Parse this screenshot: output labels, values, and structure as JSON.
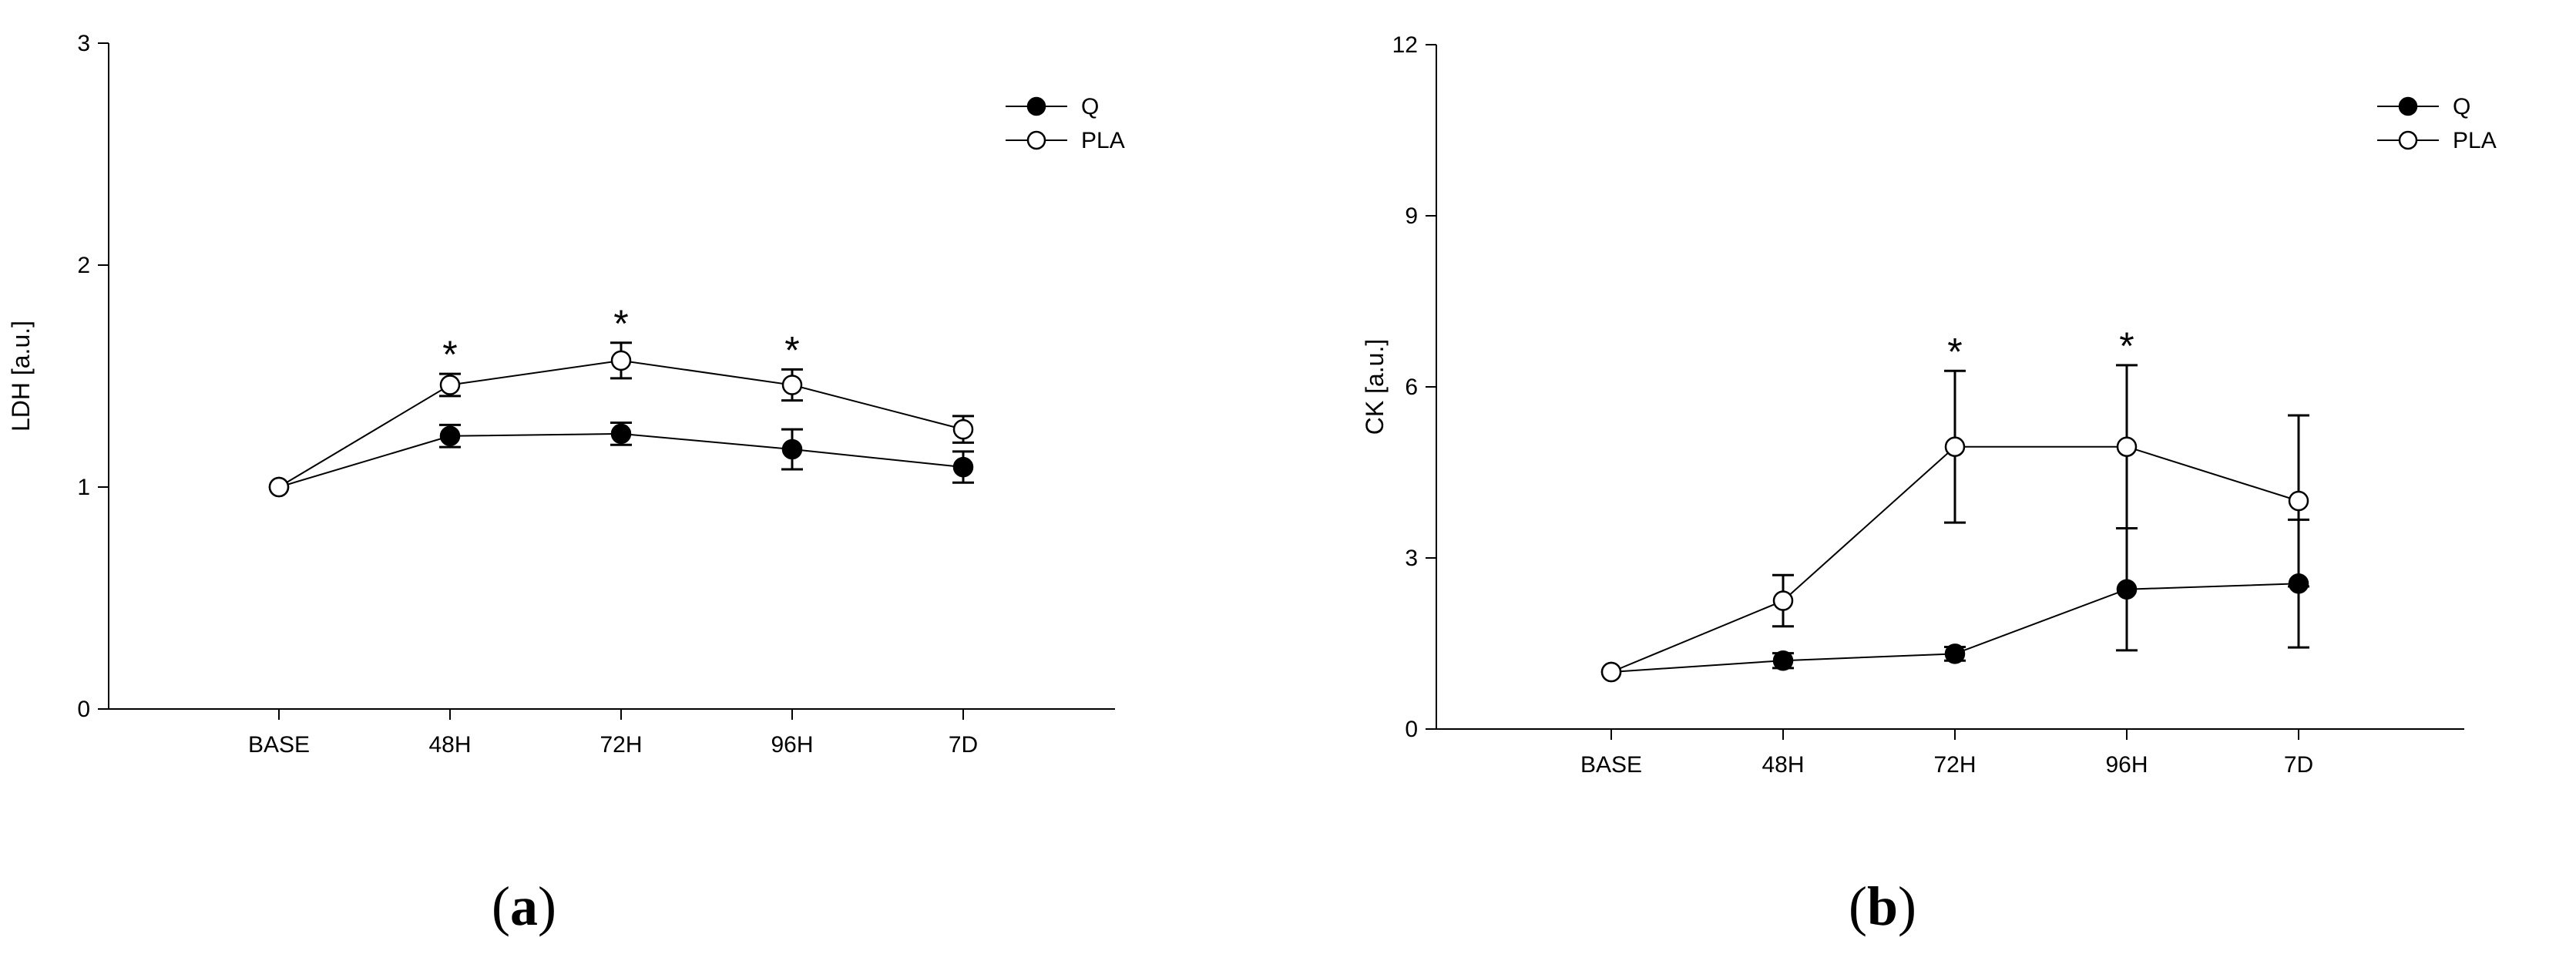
{
  "chart_data": [
    {
      "type": "line",
      "panel_label_open": "(",
      "panel_label_letter": "a",
      "panel_label_close": ")",
      "ylabel": "LDH [a.u.]",
      "ylim": [
        0,
        3
      ],
      "yticks": [
        "0",
        "1",
        "2",
        "3"
      ],
      "categories": [
        "BASE",
        "48H",
        "72H",
        "96H",
        "7D"
      ],
      "legend_position": "top-right",
      "series": [
        {
          "name": "Q",
          "marker": "filled",
          "values": [
            1.0,
            1.23,
            1.24,
            1.17,
            1.09
          ],
          "errors": [
            0,
            0.05,
            0.05,
            0.09,
            0.07
          ]
        },
        {
          "name": "PLA",
          "marker": "open",
          "values": [
            1.0,
            1.46,
            1.57,
            1.46,
            1.26
          ],
          "errors": [
            0,
            0.05,
            0.08,
            0.07,
            0.06
          ]
        }
      ],
      "significance": {
        "symbol": "*",
        "categories": [
          "48H",
          "72H",
          "96H"
        ]
      }
    },
    {
      "type": "line",
      "panel_label_open": "(",
      "panel_label_letter": "b",
      "panel_label_close": ")",
      "ylabel": "CK [a.u.]",
      "ylim": [
        0,
        12
      ],
      "yticks": [
        "0",
        "3",
        "6",
        "9",
        "12"
      ],
      "categories": [
        "BASE",
        "48H",
        "72H",
        "96H",
        "7D"
      ],
      "legend_position": "top-right",
      "series": [
        {
          "name": "Q",
          "marker": "filled",
          "values": [
            1.0,
            1.2,
            1.32,
            2.45,
            2.55
          ],
          "errors": [
            0,
            0.13,
            0.12,
            1.07,
            1.12
          ]
        },
        {
          "name": "PLA",
          "marker": "open",
          "values": [
            1.0,
            2.25,
            4.95,
            4.95,
            4.0
          ],
          "errors": [
            0,
            0.45,
            1.33,
            1.43,
            1.5
          ]
        }
      ],
      "significance": {
        "symbol": "*",
        "categories": [
          "72H",
          "96H"
        ]
      }
    }
  ]
}
